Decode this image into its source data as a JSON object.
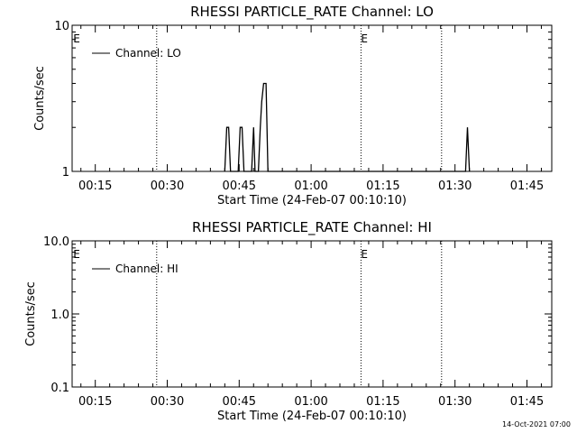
{
  "timestamp": "14-Oct-2021 07:00",
  "chart_data": [
    {
      "type": "line",
      "title": "RHESSI PARTICLE_RATE Channel: LO",
      "xlabel": "Start Time (24-Feb-07 00:10:10)",
      "ylabel": "Counts/sec",
      "x_ticks": [
        "00:15",
        "00:30",
        "00:45",
        "01:00",
        "01:15",
        "01:30",
        "01:45"
      ],
      "y_ticks": [
        "1",
        "10"
      ],
      "y_scale": "log",
      "ylim": [
        1,
        10
      ],
      "xlim_minutes": [
        10.17,
        110.17
      ],
      "legend": "top-left",
      "series": [
        {
          "name": "Channel: LO",
          "points": [
            [
              42.0,
              1
            ],
            [
              42.4,
              2
            ],
            [
              42.8,
              2
            ],
            [
              43.2,
              1
            ],
            [
              44.8,
              1
            ],
            [
              45.2,
              2
            ],
            [
              45.6,
              2
            ],
            [
              46.0,
              1
            ],
            [
              47.6,
              1
            ],
            [
              48.0,
              2
            ],
            [
              48.3,
              1
            ],
            [
              49.0,
              1
            ],
            [
              49.4,
              2
            ],
            [
              49.7,
              3
            ],
            [
              50.1,
              4
            ],
            [
              50.6,
              4
            ],
            [
              51.0,
              1
            ],
            [
              92.2,
              1
            ],
            [
              92.6,
              2
            ],
            [
              93.0,
              1
            ]
          ]
        }
      ],
      "markers": [
        {
          "label": "E",
          "x_min": 10.4
        },
        {
          "label": "E",
          "x_min": 70.4
        }
      ],
      "vlines_min": [
        27.8,
        70.4,
        87.2
      ]
    },
    {
      "type": "line",
      "title": "RHESSI PARTICLE_RATE Channel: HI",
      "xlabel": "Start Time (24-Feb-07 00:10:10)",
      "ylabel": "Counts/sec",
      "x_ticks": [
        "00:15",
        "00:30",
        "00:45",
        "01:00",
        "01:15",
        "01:30",
        "01:45"
      ],
      "y_ticks": [
        "0.1",
        "1.0",
        "10.0"
      ],
      "y_scale": "log",
      "ylim": [
        0.1,
        10
      ],
      "xlim_minutes": [
        10.17,
        110.17
      ],
      "legend": "top-left",
      "series": [
        {
          "name": "Channel: HI",
          "points": []
        }
      ],
      "markers": [
        {
          "label": "E",
          "x_min": 10.4
        },
        {
          "label": "E",
          "x_min": 70.4
        }
      ],
      "vlines_min": [
        27.8,
        70.4,
        87.2
      ]
    }
  ]
}
